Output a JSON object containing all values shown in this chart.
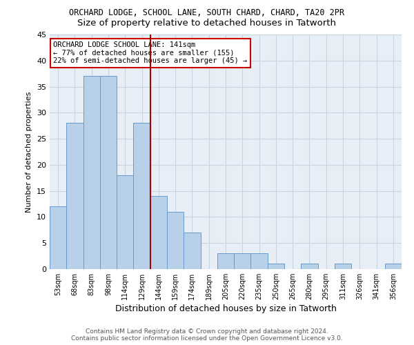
{
  "title": "ORCHARD LODGE, SCHOOL LANE, SOUTH CHARD, CHARD, TA20 2PR",
  "subtitle": "Size of property relative to detached houses in Tatworth",
  "xlabel": "Distribution of detached houses by size in Tatworth",
  "ylabel": "Number of detached properties",
  "categories": [
    "53sqm",
    "68sqm",
    "83sqm",
    "98sqm",
    "114sqm",
    "129sqm",
    "144sqm",
    "159sqm",
    "174sqm",
    "189sqm",
    "205sqm",
    "220sqm",
    "235sqm",
    "250sqm",
    "265sqm",
    "280sqm",
    "295sqm",
    "311sqm",
    "326sqm",
    "341sqm",
    "356sqm"
  ],
  "values": [
    12,
    28,
    37,
    37,
    18,
    28,
    14,
    11,
    7,
    0,
    3,
    3,
    3,
    1,
    0,
    1,
    0,
    1,
    0,
    0,
    1
  ],
  "bar_color": "#b8d0e8",
  "bar_edge_color": "#6699cc",
  "vline_x": 6,
  "vline_color": "#aa0000",
  "annotation_text": "ORCHARD LODGE SCHOOL LANE: 141sqm\n← 77% of detached houses are smaller (155)\n22% of semi-detached houses are larger (45) →",
  "annotation_box_color": "white",
  "annotation_box_edge_color": "#cc0000",
  "ylim": [
    0,
    45
  ],
  "yticks": [
    0,
    5,
    10,
    15,
    20,
    25,
    30,
    35,
    40,
    45
  ],
  "footer_line1": "Contains HM Land Registry data © Crown copyright and database right 2024.",
  "footer_line2": "Contains public sector information licensed under the Open Government Licence v3.0.",
  "background_color": "#e8eef5",
  "grid_color": "#c8d4e0",
  "title_fontsize": 8.5,
  "subtitle_fontsize": 9.5,
  "ylabel_fontsize": 8,
  "xlabel_fontsize": 9
}
